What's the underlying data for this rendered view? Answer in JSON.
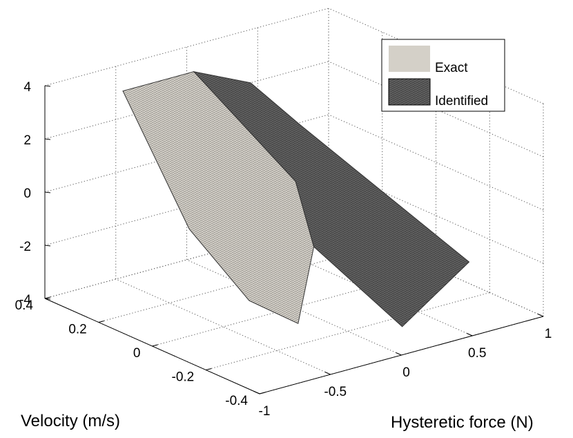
{
  "chart_data": {
    "type": "surface3d",
    "title": "",
    "xlabel": "Hysteretic force (N)",
    "ylabel": "Velocity (m/s)",
    "zlabel": "",
    "xlim": [
      -1,
      1
    ],
    "ylim": [
      -0.4,
      0.4
    ],
    "zlim": [
      -4,
      4
    ],
    "x_ticks": [
      "-1",
      "-0.5",
      "0",
      "0.5",
      "1"
    ],
    "y_ticks": [
      "-0.4",
      "-0.2",
      "0",
      "0.2",
      "0.4"
    ],
    "z_ticks": [
      "-4",
      "-2",
      "0",
      "2",
      "4"
    ],
    "x_tick_values": [
      -1,
      -0.5,
      0,
      0.5,
      1
    ],
    "y_tick_values": [
      -0.4,
      -0.2,
      0,
      0.2,
      0.4
    ],
    "z_tick_values": [
      -4,
      -2,
      0,
      2,
      4
    ],
    "grid": true,
    "legend_position": "top-right",
    "series": [
      {
        "name": "Exact",
        "color": "#d4d0c8",
        "vertices": [
          [
            -0.45,
            0.4,
            3.0
          ],
          [
            0.05,
            0.4,
            3.0
          ],
          [
            0.2,
            0.1,
            0.0
          ],
          [
            -0.05,
            -0.1,
            -1.2
          ],
          [
            -0.35,
            -0.2,
            -3.2
          ],
          [
            -0.6,
            -0.15,
            -2.2
          ],
          [
            -0.55,
            0.1,
            -0.7
          ]
        ]
      },
      {
        "name": "Identified",
        "color": "#4a4a4a",
        "vertices": [
          [
            0.05,
            0.4,
            3.0
          ],
          [
            0.45,
            0.4,
            2.0
          ],
          [
            0.7,
            0.35,
            0.3
          ],
          [
            0.95,
            -0.15,
            -3.0
          ],
          [
            0.1,
            -0.35,
            -3.3
          ],
          [
            -0.05,
            -0.1,
            -1.2
          ],
          [
            0.2,
            0.1,
            0.0
          ]
        ]
      }
    ]
  }
}
